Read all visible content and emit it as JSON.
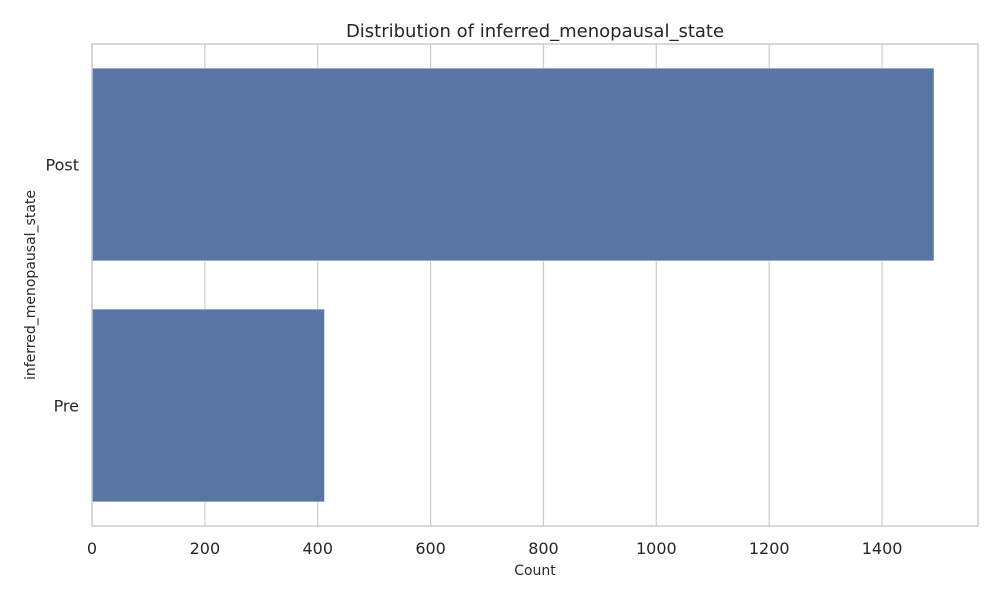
{
  "chart_data": {
    "type": "bar",
    "orientation": "horizontal",
    "title": "Distribution of inferred_menopausal_state",
    "xlabel": "Count",
    "ylabel": "inferred_menopausal_state",
    "categories": [
      "Post",
      "Pre"
    ],
    "values": [
      1492,
      412
    ],
    "xlim": [
      0,
      1570
    ],
    "xticks": [
      0,
      200,
      400,
      600,
      800,
      1000,
      1200,
      1400
    ],
    "grid": true,
    "grid_axis": "x",
    "legend": "none"
  },
  "colors": {
    "bar": "#5975a4",
    "grid": "#cccccc",
    "spine": "#cccccc",
    "text": "#262626",
    "background": "#ffffff"
  }
}
